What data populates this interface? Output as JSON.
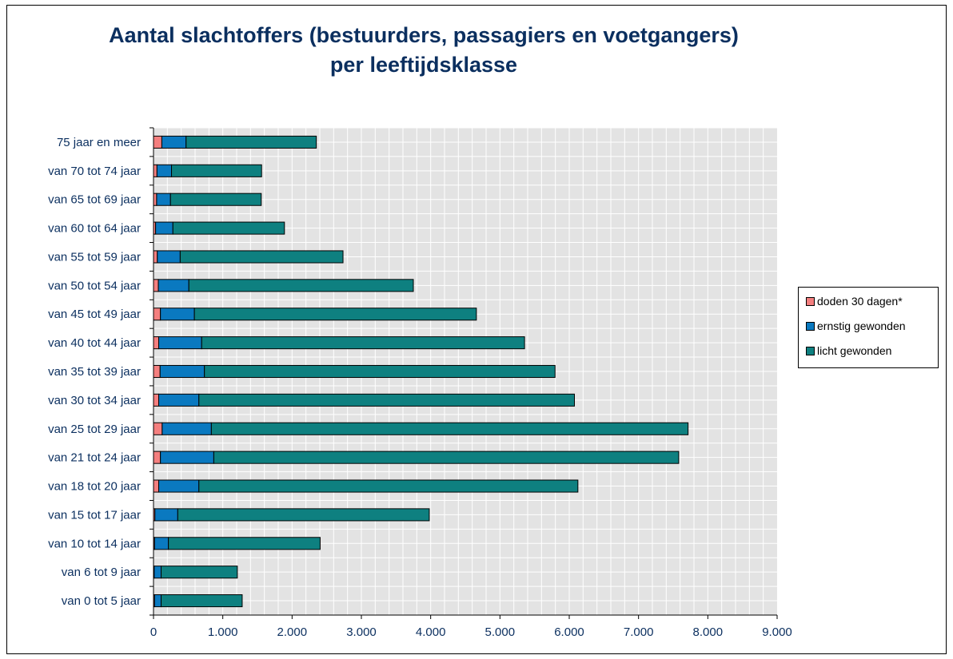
{
  "chart_data": {
    "type": "bar",
    "orientation": "horizontal",
    "stacked": true,
    "title": "Aantal slachtoffers (bestuurders, passagiers en voetgangers) per leeftijdsklasse",
    "xlabel": "",
    "ylabel": "",
    "xlim": [
      0,
      9000
    ],
    "x_ticks": [
      0,
      1000,
      2000,
      3000,
      4000,
      5000,
      6000,
      7000,
      8000,
      9000
    ],
    "x_tick_labels": [
      "0",
      "1.000",
      "2.000",
      "3.000",
      "4.000",
      "5.000",
      "6.000",
      "7.000",
      "8.000",
      "9.000"
    ],
    "grid": true,
    "legend_position": "right",
    "categories": [
      "75 jaar en meer",
      "van 70 tot 74 jaar",
      "van 65 tot 69 jaar",
      "van 60 tot 64 jaar",
      "van 55 tot 59 jaar",
      "van 50 tot 54 jaar",
      "van 45 tot 49 jaar",
      "van 40 tot 44 jaar",
      "van 35 tot 39 jaar",
      "van 30 tot 34 jaar",
      "van 25 tot 29 jaar",
      "van 21 tot 24 jaar",
      "van 18 tot 20 jaar",
      "van 15 tot 17 jaar",
      "van 10 tot 14 jaar",
      "van 6 tot 9 jaar",
      "van 0 tot 5 jaar"
    ],
    "series": [
      {
        "name": "doden 30 dagen*",
        "color": "#f47f7f",
        "values": [
          120,
          50,
          45,
          30,
          55,
          70,
          100,
          75,
          95,
          75,
          125,
          100,
          75,
          20,
          15,
          10,
          15
        ]
      },
      {
        "name": "ernstig gewonden",
        "color": "#0a79c0",
        "values": [
          350,
          210,
          200,
          250,
          330,
          440,
          490,
          620,
          640,
          580,
          710,
          770,
          580,
          330,
          200,
          100,
          95
        ]
      },
      {
        "name": "licht gewonden",
        "color": "#0e8080",
        "values": [
          1880,
          1300,
          1310,
          1610,
          2350,
          3240,
          4070,
          4660,
          5060,
          5420,
          6880,
          6710,
          5470,
          3630,
          2190,
          1100,
          1170
        ]
      }
    ]
  }
}
